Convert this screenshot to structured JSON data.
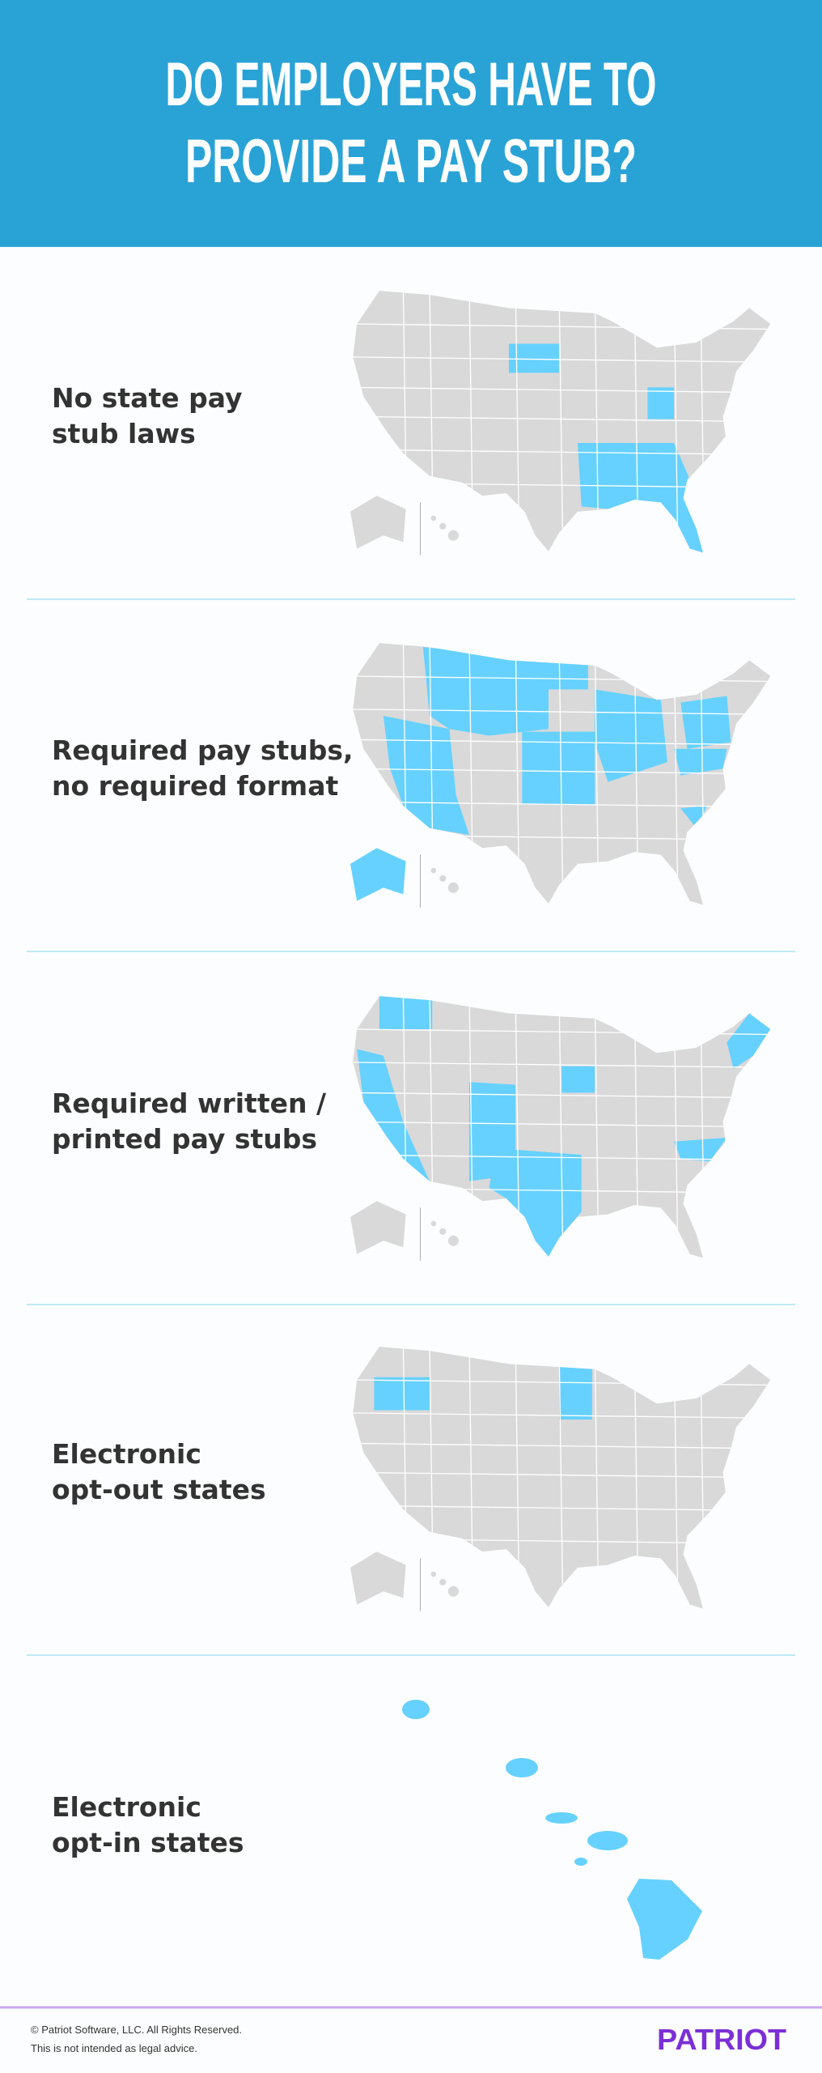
{
  "header": {
    "title_lines": [
      "DO EMPLOYERS HAVE TO",
      "PROVIDE A PAY STUB?"
    ]
  },
  "sections": [
    {
      "label_lines": [
        "No state pay",
        "stub laws"
      ]
    },
    {
      "label_lines": [
        "Required pay stubs,",
        "no required format"
      ]
    },
    {
      "label_lines": [
        "Required written /",
        "printed pay stubs"
      ]
    },
    {
      "label_lines": [
        "Electronic",
        "opt-out states"
      ]
    },
    {
      "label_lines": [
        "Electronic",
        "opt-in states"
      ]
    }
  ],
  "footer": {
    "copyright": "© Patriot Software, LLC. All Rights Reserved.",
    "disclaimer": "This is not intended as legal advice.",
    "logo": "PATRIOT"
  }
}
